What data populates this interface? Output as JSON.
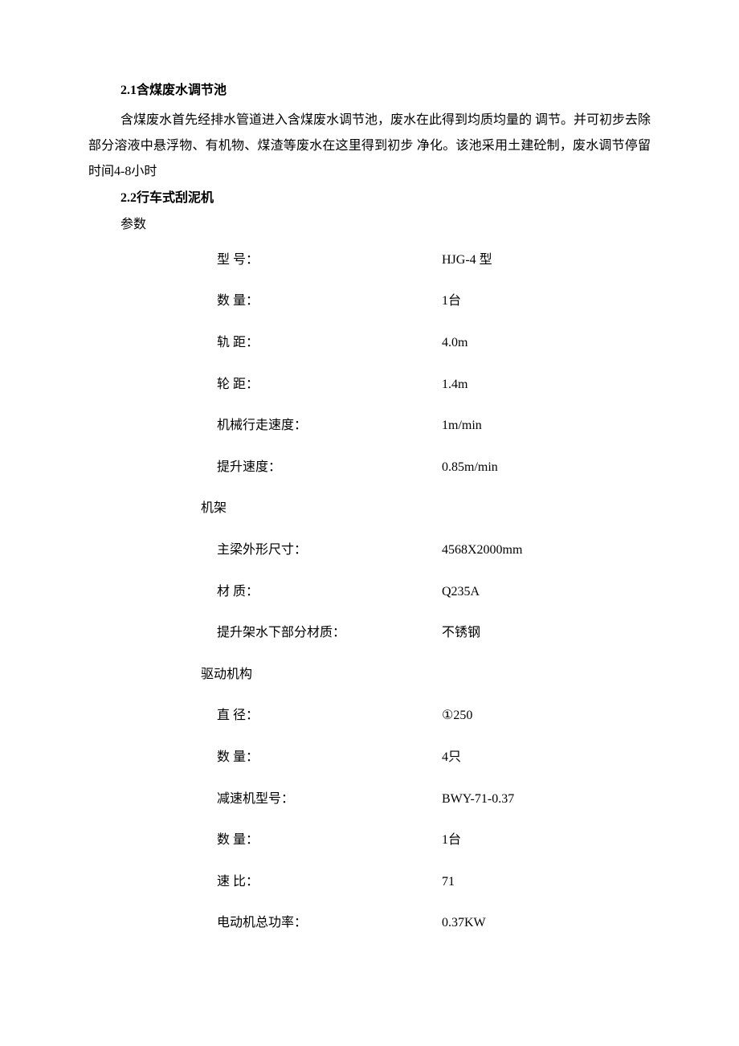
{
  "section21": {
    "heading": "2.1含煤废水调节池",
    "paragraph": "含煤废水首先经排水管道进入含煤废水调节池，废水在此得到均质均量的 调节。并可初步去除部分溶液中悬浮物、有机物、煤渣等废水在这里得到初步 净化。该池采用土建砼制，废水调节停留时间4-8小时"
  },
  "section22": {
    "heading": "2.2行车式刮泥机",
    "paramLabel": "参数",
    "generalSpecs": [
      {
        "label": "型 号：",
        "value": "HJG-4 型"
      },
      {
        "label": "数 量：",
        "value": "1台"
      },
      {
        "label": "轨 距：",
        "value": "4.0m"
      },
      {
        "label": "轮 距：",
        "value": "1.4m"
      },
      {
        "label": "机械行走速度：",
        "value": "1m/min"
      },
      {
        "label": "提升速度：",
        "value": "0.85m/min"
      }
    ],
    "frameLabel": "机架",
    "frameSpecs": [
      {
        "label": "主梁外形尺寸：",
        "value": "4568X2000mm"
      },
      {
        "label": "材 质：",
        "value": "Q235A"
      },
      {
        "label": "提升架水下部分材质：",
        "value": "不锈钢"
      }
    ],
    "driveLabel": "驱动机构",
    "driveSpecs": [
      {
        "label": "直 径：",
        "value": "①250"
      },
      {
        "label": "数 量：",
        "value": "4只"
      },
      {
        "label": "减速机型号：",
        "value": "BWY-71-0.37"
      },
      {
        "label": "数 量：",
        "value": "1台"
      },
      {
        "label": "速 比：",
        "value": "71"
      },
      {
        "label": "电动机总功率：",
        "value": "0.37KW"
      }
    ]
  }
}
